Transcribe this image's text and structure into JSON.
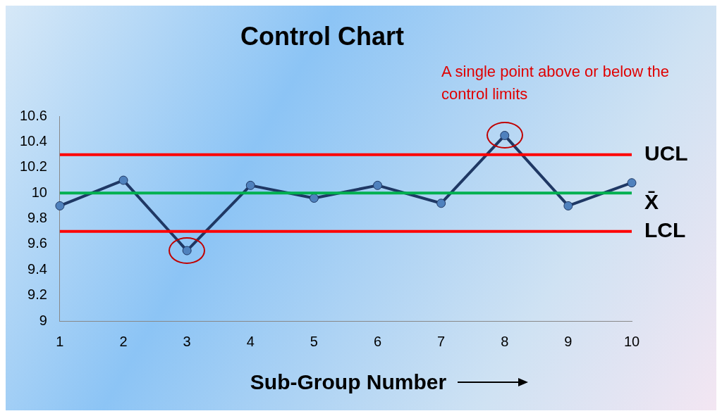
{
  "chart_data": {
    "type": "line",
    "title": "Control Chart",
    "xlabel": "Sub-Group Number",
    "categories": [
      "1",
      "2",
      "3",
      "4",
      "5",
      "6",
      "7",
      "8",
      "9",
      "10"
    ],
    "series": [
      {
        "color": "#1f3864",
        "values": [
          9.9,
          10.1,
          9.55,
          10.06,
          9.96,
          10.06,
          9.92,
          10.45,
          9.9,
          10.08
        ]
      }
    ],
    "ylim": [
      9,
      10.6
    ],
    "yticks": [
      9,
      9.2,
      9.4,
      9.6,
      9.8,
      10,
      10.2,
      10.4,
      10.6
    ],
    "grid": false,
    "legend": false,
    "marker": "circle",
    "line_style": "solid",
    "ref_lines": [
      {
        "axis": "y",
        "value": 10.3,
        "label": "UCL",
        "color": "#ff0000"
      },
      {
        "axis": "y",
        "value": 10,
        "label": "X̄",
        "color": "#00b050"
      },
      {
        "axis": "y",
        "value": 9.7,
        "label": "LCL",
        "color": "#ff0000"
      }
    ],
    "annotations": [
      "A single point above or below the control limits"
    ]
  }
}
